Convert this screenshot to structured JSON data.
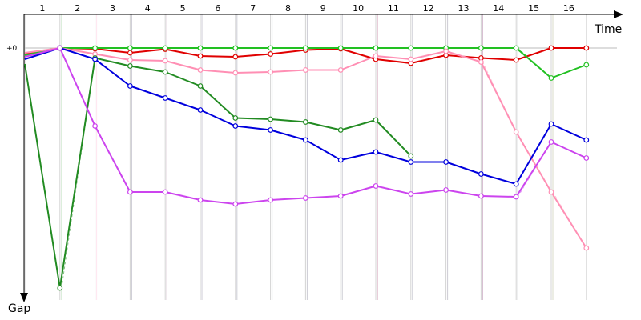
{
  "chart_data": {
    "type": "line",
    "title": "",
    "xlabel": "Time",
    "ylabel": "Gap",
    "reference_label": "+0'",
    "lap_labels": [
      "1",
      "2",
      "3",
      "4",
      "5",
      "6",
      "7",
      "8",
      "9",
      "10",
      "11",
      "12",
      "13",
      "14",
      "15",
      "16"
    ],
    "x_range": [
      0,
      16
    ],
    "y_range": [
      0,
      6
    ],
    "grid": true,
    "series": [
      {
        "color": "#e00000",
        "pit_laps": [
          10,
          16
        ],
        "values": [
          [
            0,
            0.15
          ],
          [
            1,
            0
          ],
          [
            2,
            0.02
          ],
          [
            3,
            0.12
          ],
          [
            4,
            0.03
          ],
          [
            5,
            0.2
          ],
          [
            6,
            0.22
          ],
          [
            7,
            0.15
          ],
          [
            8,
            0.05
          ],
          [
            9,
            0.02
          ],
          [
            10,
            0.28
          ],
          [
            11,
            0.38
          ],
          [
            12,
            0.18
          ],
          [
            13,
            0.25
          ],
          [
            14,
            0.3
          ],
          [
            15,
            0
          ],
          [
            16,
            0
          ]
        ]
      },
      {
        "color": "#22c022",
        "pit_laps": [
          3,
          4,
          5,
          6,
          7,
          8,
          9,
          10,
          11,
          12,
          13,
          14,
          15,
          16
        ],
        "values": [
          [
            0,
            0.18
          ],
          [
            1,
            0
          ],
          [
            2,
            0
          ],
          [
            3,
            0
          ],
          [
            4,
            0
          ],
          [
            5,
            0
          ],
          [
            6,
            0
          ],
          [
            7,
            0
          ],
          [
            8,
            0
          ],
          [
            9,
            0
          ],
          [
            10,
            0
          ],
          [
            11,
            0
          ],
          [
            12,
            0
          ],
          [
            13,
            0
          ],
          [
            14,
            0
          ],
          [
            15,
            0.75
          ],
          [
            16,
            0.42
          ]
        ]
      },
      {
        "color": "#ff8fb4",
        "pit_laps": [
          2,
          4,
          10,
          13,
          15,
          16
        ],
        "values": [
          [
            0,
            0.12
          ],
          [
            1,
            0
          ],
          [
            2,
            0.15
          ],
          [
            3,
            0.3
          ],
          [
            4,
            0.32
          ],
          [
            5,
            0.55
          ],
          [
            6,
            0.62
          ],
          [
            7,
            0.6
          ],
          [
            8,
            0.55
          ],
          [
            9,
            0.55
          ],
          [
            10,
            0.2
          ],
          [
            11,
            0.28
          ],
          [
            12,
            0.08
          ],
          [
            13,
            0.35
          ],
          [
            14,
            2.1
          ],
          [
            15,
            3.6
          ],
          [
            16,
            5
          ]
        ]
      },
      {
        "color": "#228b22",
        "pit_laps": [
          1
        ],
        "values": [
          [
            0,
            0.4
          ],
          [
            1,
            6
          ],
          [
            2,
            0.25
          ],
          [
            3,
            0.45
          ],
          [
            4,
            0.6
          ],
          [
            5,
            0.95
          ],
          [
            6,
            1.75
          ],
          [
            7,
            1.78
          ],
          [
            8,
            1.85
          ],
          [
            9,
            2.05
          ],
          [
            10,
            1.8
          ],
          [
            11,
            2.7
          ]
        ]
      },
      {
        "color": "#0000dd",
        "pit_laps": [],
        "values": [
          [
            0,
            0.28
          ],
          [
            1,
            0
          ],
          [
            2,
            0.28
          ],
          [
            3,
            0.95
          ],
          [
            4,
            1.25
          ],
          [
            5,
            1.55
          ],
          [
            6,
            1.95
          ],
          [
            7,
            2.05
          ],
          [
            8,
            2.3
          ],
          [
            9,
            2.8
          ],
          [
            10,
            2.6
          ],
          [
            11,
            2.85
          ],
          [
            12,
            2.85
          ],
          [
            13,
            3.15
          ],
          [
            14,
            3.4
          ],
          [
            15,
            1.9
          ],
          [
            16,
            2.3
          ]
        ]
      },
      {
        "color": "#cc44ee",
        "pit_laps": [
          3,
          4,
          5,
          6,
          7,
          8,
          9,
          10,
          11,
          12,
          13,
          14,
          16
        ],
        "values": [
          [
            0,
            0.22
          ],
          [
            1,
            0
          ],
          [
            2,
            1.95
          ],
          [
            3,
            3.6
          ],
          [
            4,
            3.6
          ],
          [
            5,
            3.8
          ],
          [
            6,
            3.9
          ],
          [
            7,
            3.8
          ],
          [
            8,
            3.75
          ],
          [
            9,
            3.7
          ],
          [
            10,
            3.45
          ],
          [
            11,
            3.65
          ],
          [
            12,
            3.55
          ],
          [
            13,
            3.7
          ],
          [
            14,
            3.72
          ],
          [
            15,
            2.35
          ],
          [
            16,
            2.75
          ]
        ]
      }
    ]
  }
}
